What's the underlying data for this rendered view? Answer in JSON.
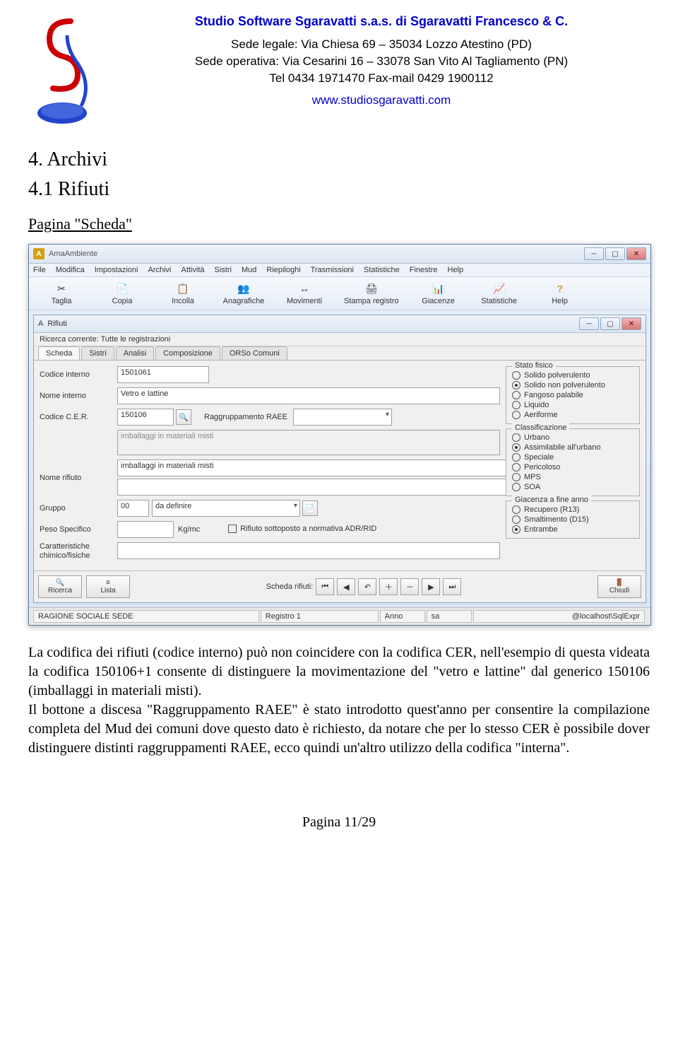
{
  "header": {
    "company": "Studio Software Sgaravatti s.a.s. di Sgaravatti Francesco & C.",
    "addr1": "Sede legale: Via Chiesa 69 – 35034 Lozzo Atestino (PD)",
    "addr2": "Sede operativa: Via Cesarini 16 – 33078 San Vito Al Tagliamento (PN)",
    "tel": "Tel 0434 1971470 Fax-mail 0429 1900112",
    "website": "www.studiosgaravatti.com"
  },
  "sections": {
    "main": "4. Archivi",
    "sub": "4.1 Rifiuti",
    "pagelabel": "Pagina \"Scheda\""
  },
  "app": {
    "title": "AmaAmbiente",
    "menu": [
      "File",
      "Modifica",
      "Impostazioni",
      "Archivi",
      "Attività",
      "Sistri",
      "Mud",
      "Riepiloghi",
      "Trasmissioni",
      "Statistiche",
      "Finestre",
      "Help"
    ],
    "toolbar": [
      {
        "label": "Taglia",
        "icon": "✂"
      },
      {
        "label": "Copia",
        "icon": "📄"
      },
      {
        "label": "Incolla",
        "icon": "📋"
      },
      {
        "label": "Anagrafiche",
        "icon": "👥"
      },
      {
        "label": "Movimenti",
        "icon": "↔"
      },
      {
        "label": "Stampa registro",
        "icon": "🖨"
      },
      {
        "label": "Giacenze",
        "icon": "📊"
      },
      {
        "label": "Statistiche",
        "icon": "📈"
      },
      {
        "label": "Help",
        "icon": "?"
      }
    ],
    "inner": {
      "title": "Rifiuti",
      "search": "Ricerca corrente: Tutte le registrazioni",
      "tabs": [
        "Scheda",
        "Sistri",
        "Analisi",
        "Composizione",
        "ORSo Comuni"
      ],
      "fields": {
        "codice_interno_label": "Codice interno",
        "codice_interno": "1501061",
        "nome_interno_label": "Nome interno",
        "nome_interno": "Vetro e lattine",
        "codice_cer_label": "Codice C.E.R.",
        "codice_cer": "150106",
        "raee_label": "Raggruppamento RAEE",
        "raee": "",
        "desc_disabled": "imballaggi in materiali misti",
        "nome_rifiuto_label": "Nome rifiuto",
        "nome_rifiuto": "imballaggi in materiali misti",
        "gruppo_label": "Gruppo",
        "gruppo_code": "00",
        "gruppo_desc": "da definire",
        "peso_label": "Peso Specifico",
        "peso_unit": "Kg/mc",
        "adr_label": "Rifiuto sottoposto a normativa  ADR/RID",
        "caratt_label": "Caratteristiche chimico/fisiche"
      },
      "stato_fisico": {
        "legend": "Stato fisico",
        "options": [
          "Solido polverulento",
          "Solido non polverulento",
          "Fangoso palabile",
          "Liquido",
          "Aeriforme"
        ],
        "selected": 1
      },
      "classificazione": {
        "legend": "Classificazione",
        "options": [
          "Urbano",
          "Assimilabile all'urbano",
          "Speciale",
          "Pericoloso",
          "MPS",
          "SOA"
        ],
        "selected": 1
      },
      "giacenza": {
        "legend": "Giacenza a fine anno",
        "options": [
          "Recupero (R13)",
          "Smaltimento (D15)",
          "Entrambe"
        ],
        "selected": 2
      },
      "nav": {
        "ricerca": "Ricerca",
        "lista": "Lista",
        "scheda_label": "Scheda rifiuti:",
        "chiudi": "Chiudi"
      }
    },
    "status": {
      "left": "RAGIONE SOCIALE SEDE",
      "registro": "Registro 1",
      "anno": "Anno",
      "user": "sa",
      "host": "@localhost\\SqlExpr"
    }
  },
  "body_text": "La codifica dei rifiuti (codice interno) può non coincidere con la codifica CER, nell'esempio di questa videata la codifica 150106+1 consente di distinguere la movimentazione del \"vetro e lattine\" dal generico 150106 (imballaggi in materiali misti).\nIl bottone a discesa \"Raggruppamento RAEE\" è stato introdotto quest'anno per consentire la compilazione completa del Mud dei comuni dove questo dato è richiesto, da notare che per lo stesso CER è possibile dover distinguere distinti raggruppamenti RAEE, ecco quindi un'altro utilizzo della codifica \"interna\".",
  "footer": "Pagina 11/29",
  "colors": {
    "link": "#0000cc",
    "help_icon": "#d4a017"
  }
}
